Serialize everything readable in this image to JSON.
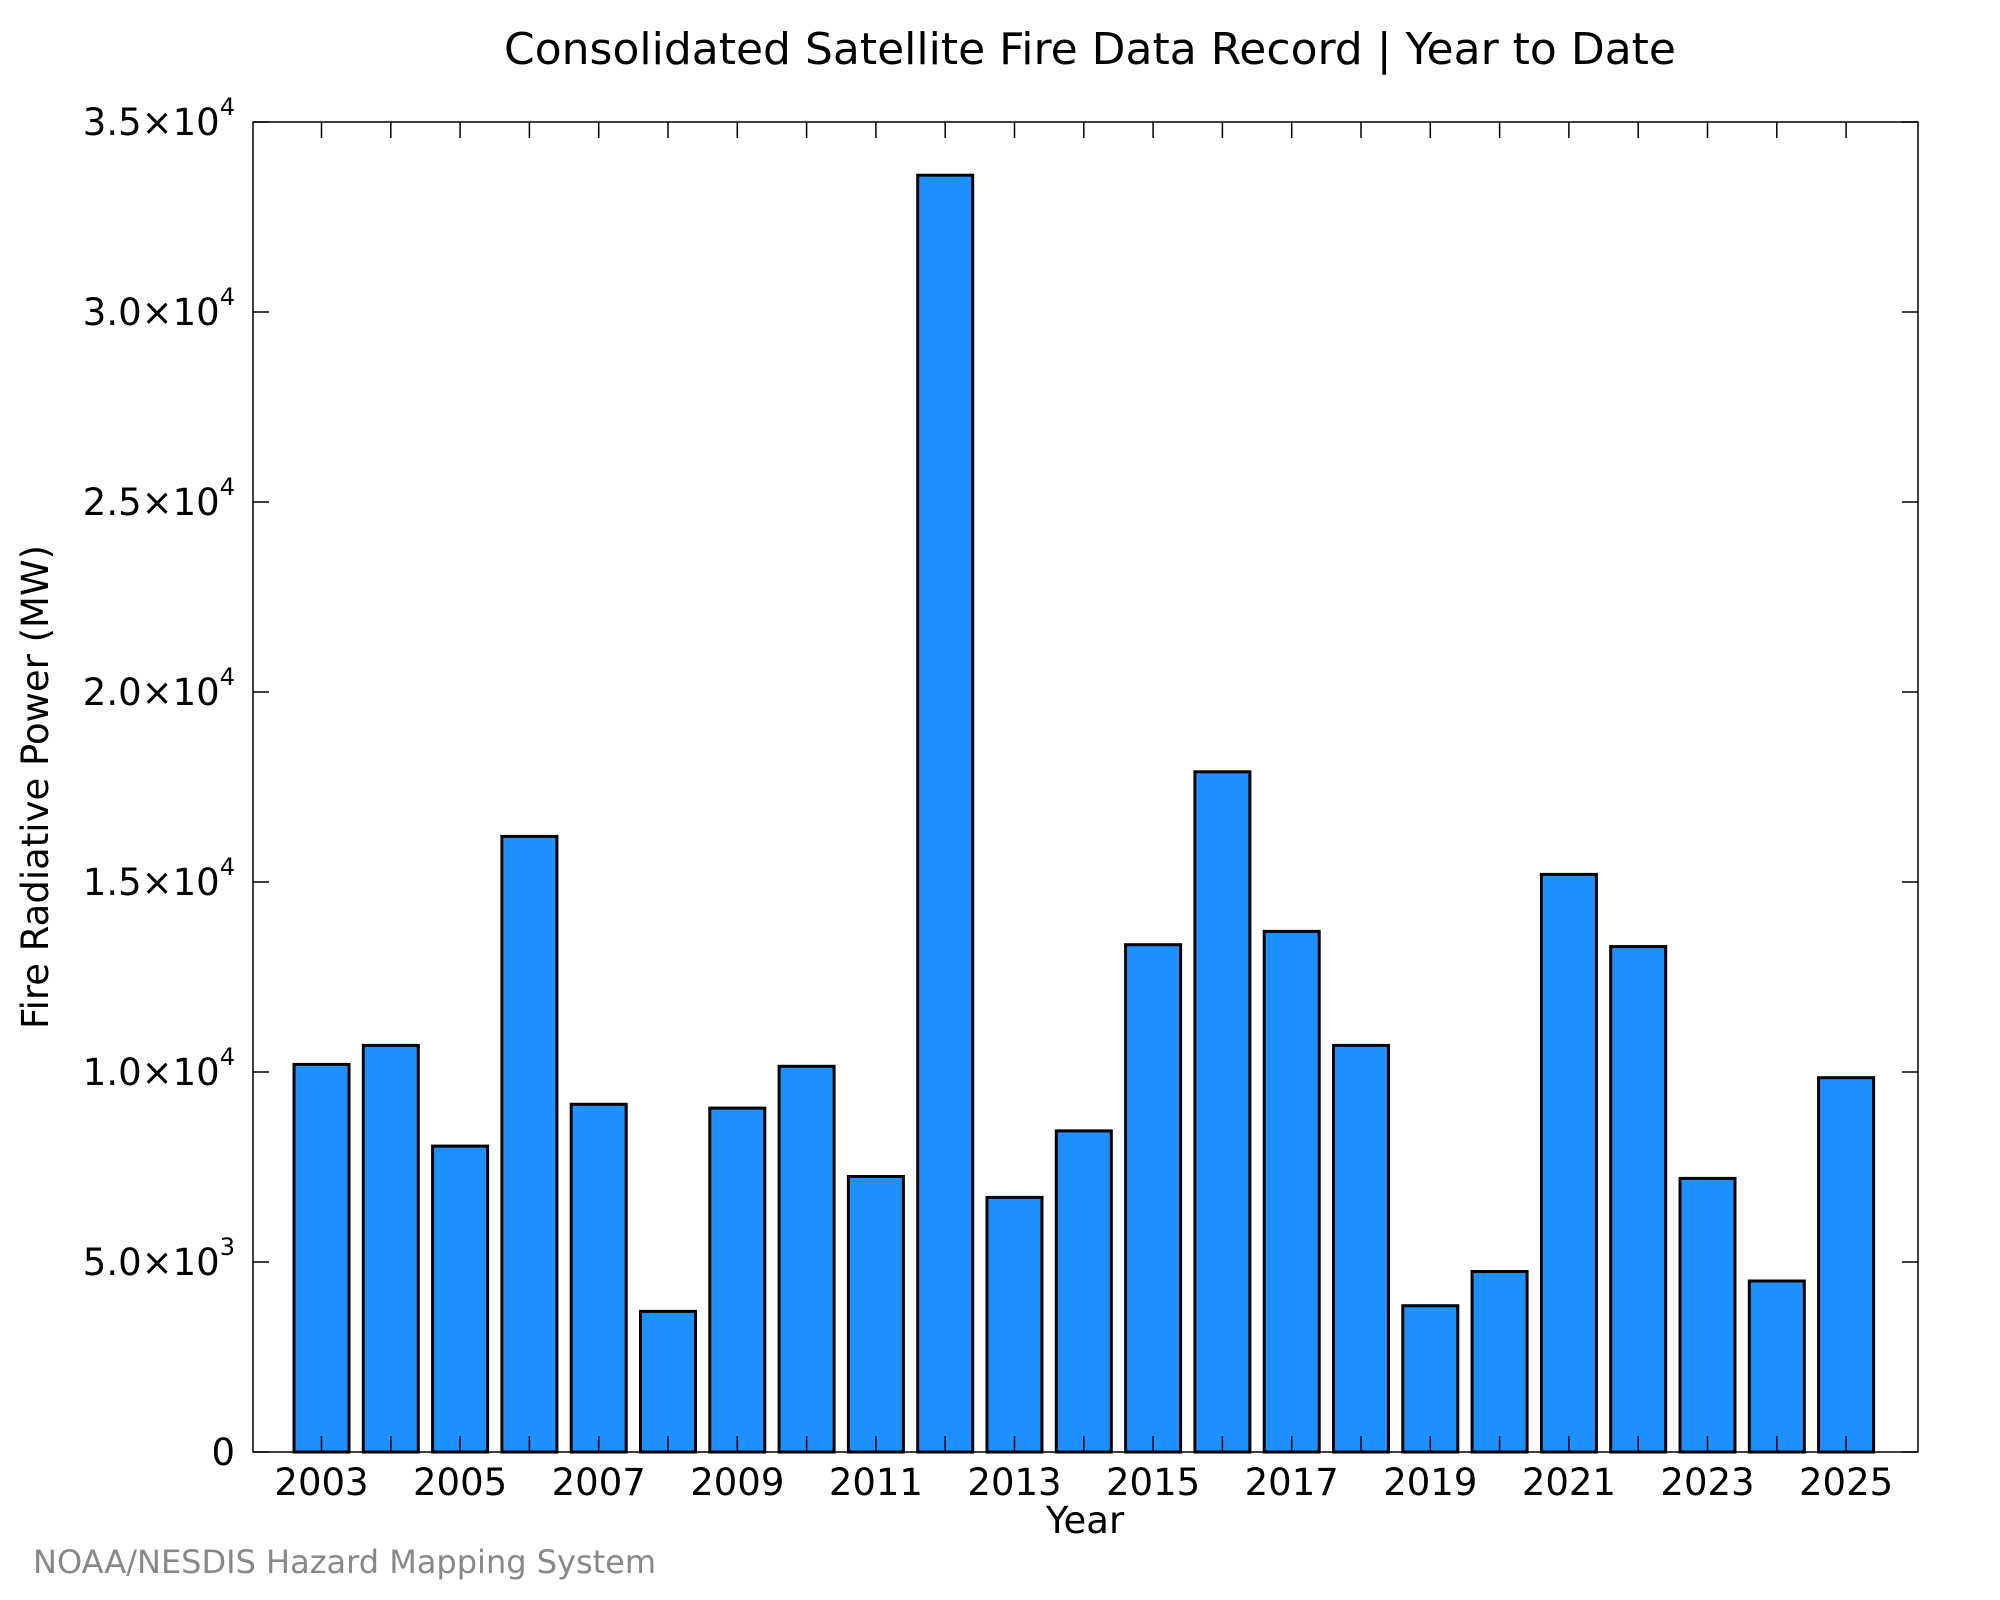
{
  "chart_data": {
    "type": "bar",
    "title": "Consolidated Satellite Fire Data Record | Year to Date",
    "xlabel": "Year",
    "ylabel": "Fire Radiative Power (MW)",
    "credit": "NOAA/NESDIS Hazard Mapping System",
    "categories": [
      "2003",
      "2004",
      "2005",
      "2006",
      "2007",
      "2008",
      "2009",
      "2010",
      "2011",
      "2012",
      "2013",
      "2014",
      "2015",
      "2016",
      "2017",
      "2018",
      "2019",
      "2020",
      "2021",
      "2022",
      "2023",
      "2024",
      "2025"
    ],
    "values": [
      10200,
      10700,
      8050,
      16200,
      9150,
      3700,
      9050,
      10150,
      7250,
      33600,
      6700,
      8450,
      13350,
      17900,
      13700,
      10700,
      3850,
      4750,
      15200,
      13300,
      7200,
      4500,
      9850
    ],
    "x_tick_labels": [
      "2003",
      "2005",
      "2007",
      "2009",
      "2011",
      "2013",
      "2015",
      "2017",
      "2019",
      "2021",
      "2023",
      "2025"
    ],
    "y_ticks": [
      {
        "value": 0,
        "mantissa": "0",
        "exponent": ""
      },
      {
        "value": 5000,
        "mantissa": "5.0×10",
        "exponent": "3"
      },
      {
        "value": 10000,
        "mantissa": "1.0×10",
        "exponent": "4"
      },
      {
        "value": 15000,
        "mantissa": "1.5×10",
        "exponent": "4"
      },
      {
        "value": 20000,
        "mantissa": "2.0×10",
        "exponent": "4"
      },
      {
        "value": 25000,
        "mantissa": "2.5×10",
        "exponent": "4"
      },
      {
        "value": 30000,
        "mantissa": "3.0×10",
        "exponent": "4"
      },
      {
        "value": 35000,
        "mantissa": "3.5×10",
        "exponent": "4"
      }
    ],
    "ylim": [
      0,
      35000
    ],
    "grid": false,
    "legend": "none",
    "bar_color": "#1E90FF",
    "bar_edge_color": "#000000"
  }
}
